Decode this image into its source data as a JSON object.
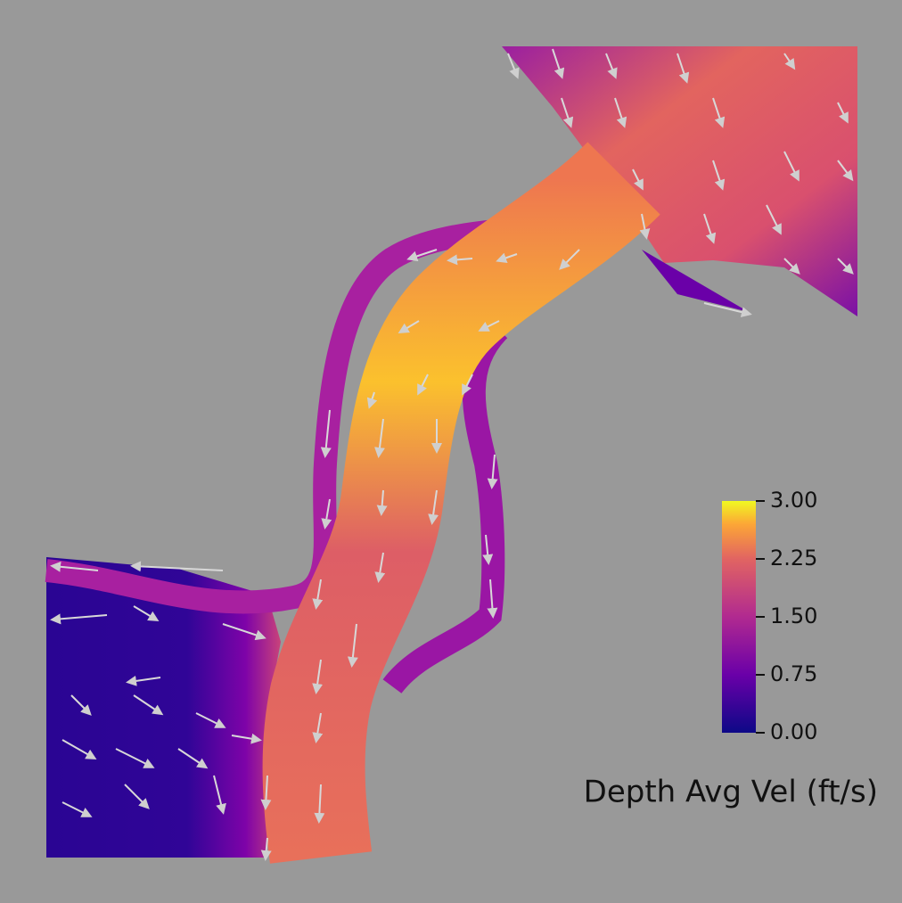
{
  "colorbar": {
    "title": "Depth Avg Vel (ft/s)",
    "range": [
      0,
      3
    ],
    "ticks": [
      {
        "value": 0,
        "label": "0.00"
      },
      {
        "value": 0.75,
        "label": "0.75"
      },
      {
        "value": 1.5,
        "label": "1.50"
      },
      {
        "value": 2.25,
        "label": "2.25"
      },
      {
        "value": 3,
        "label": "3.00"
      }
    ]
  }
}
